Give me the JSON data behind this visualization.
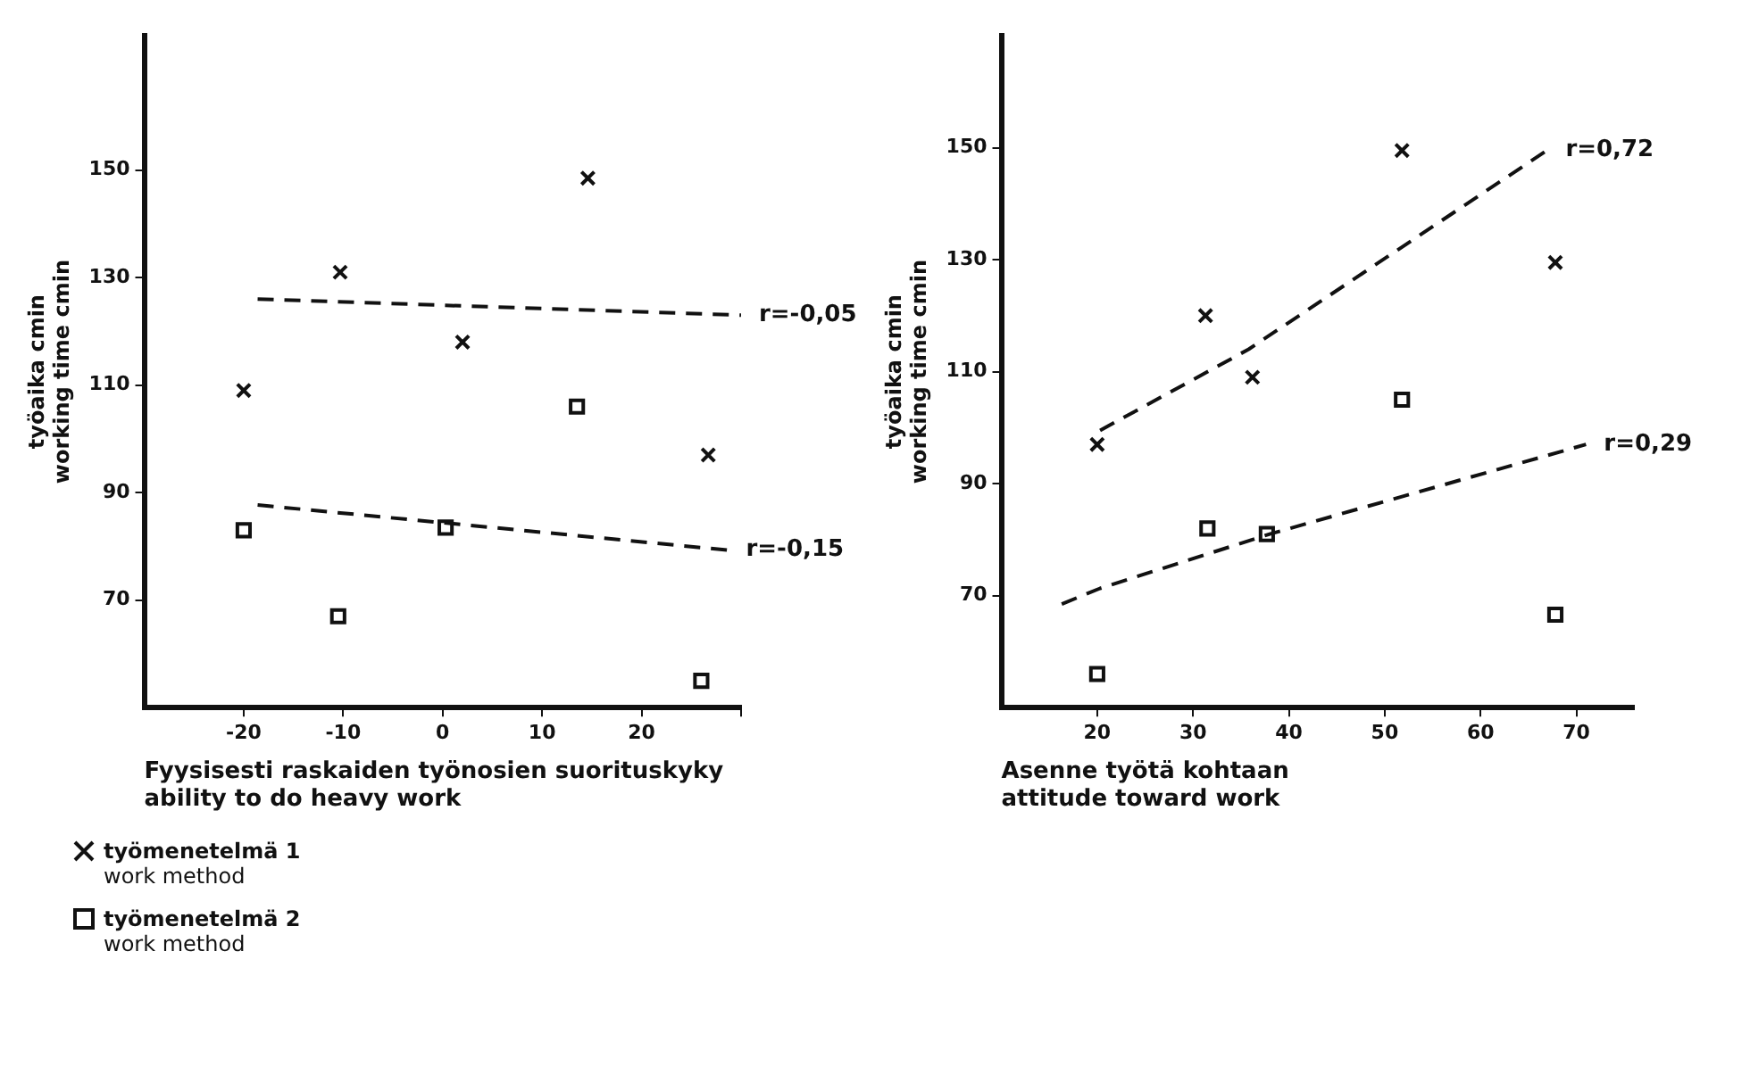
{
  "chart_data": [
    {
      "type": "scatter",
      "xlabel": "Fyysisesti raskaiden työnosien suorituskyky\nability to do heavy work",
      "ylabel": "työaika cmin\nworking time cmin",
      "xlim": [
        -30,
        30
      ],
      "xticks": [
        -20,
        -10,
        0,
        10,
        20,
        {
          "value": 30,
          "label": null
        }
      ],
      "ylim": [
        50,
        175
      ],
      "yticks": [
        70,
        90,
        110,
        130,
        150
      ],
      "grid": false,
      "legend": "bottom",
      "series": [
        {
          "name": "työmenetelmä 1\nwork method",
          "color": "#111111",
          "marker": "cross",
          "x": [
            -20,
            -10.3,
            2,
            14.6,
            26.7
          ],
          "values": [
            109,
            131,
            118,
            148.5,
            97
          ]
        },
        {
          "name": "työmenetelmä 2\nwork method",
          "color": "#111111",
          "marker": "square",
          "x": [
            -20,
            -10.5,
            0.3,
            13.5,
            26
          ],
          "values": [
            83,
            67,
            83.5,
            106,
            55
          ]
        },
        {
          "type": "line",
          "color": "#111111",
          "marker": "none",
          "line_style": "dashed",
          "x": [
            -18.6,
            30
          ],
          "values": [
            126,
            123
          ]
        },
        {
          "type": "line",
          "color": "#111111",
          "marker": "none",
          "line_style": "dashed",
          "x": [
            -18.6,
            28.7
          ],
          "values": [
            87.7,
            79.3
          ]
        }
      ],
      "annotations": [
        {
          "text": "r=-0,05",
          "x": 30,
          "y": 123
        },
        {
          "text": "r=-0,15",
          "x": 28.7,
          "y": 79.3
        }
      ]
    },
    {
      "type": "scatter",
      "xlabel": "Asenne työtä kohtaan\nattitude toward work",
      "ylabel": "työaika cmin\nworking time cmin",
      "xlim": [
        10,
        76
      ],
      "xticks": [
        20,
        30,
        40,
        50,
        60,
        70
      ],
      "ylim": [
        50,
        170
      ],
      "yticks": [
        70,
        90,
        110,
        130,
        150
      ],
      "grid": false,
      "series": [
        {
          "color": "#111111",
          "marker": "cross",
          "x": [
            20,
            31.3,
            36.2,
            51.8,
            67.8
          ],
          "values": [
            97,
            120,
            109,
            149.5,
            129.5
          ]
        },
        {
          "color": "#111111",
          "marker": "square",
          "x": [
            20,
            31.5,
            37.7,
            51.8,
            67.8
          ],
          "values": [
            56,
            82,
            81,
            105,
            66.6
          ]
        },
        {
          "type": "line",
          "color": "#111111",
          "marker": "none",
          "line_style": "dashed",
          "x": [
            20.3,
            35.8,
            67
          ],
          "values": [
            99.5,
            114,
            149.6
          ]
        },
        {
          "type": "line",
          "color": "#111111",
          "marker": "none",
          "line_style": "dashed",
          "x": [
            16.3,
            20.3,
            38,
            71
          ],
          "values": [
            68.5,
            71.3,
            81,
            97
          ]
        }
      ],
      "annotations": [
        {
          "text": "r=0,72",
          "x": 67,
          "y": 149.6
        },
        {
          "text": "r=0,29",
          "x": 71,
          "y": 97
        }
      ]
    }
  ]
}
